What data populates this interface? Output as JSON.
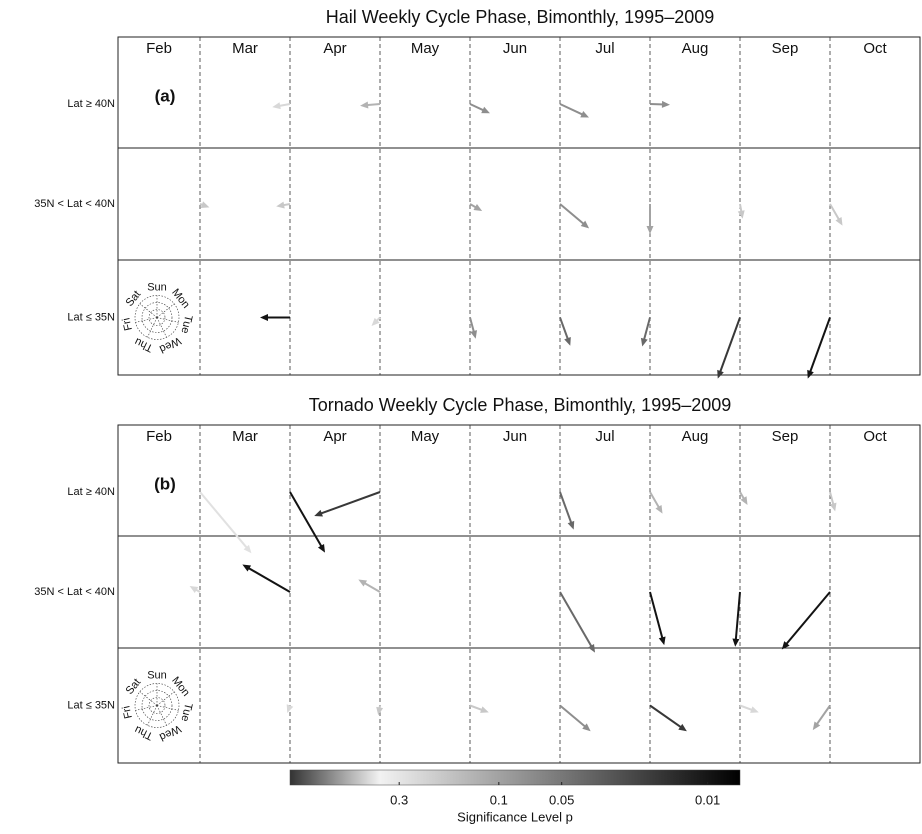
{
  "days": [
    "Sun",
    "Mon",
    "Tue",
    "Wed",
    "Thu",
    "Fri",
    "Sat"
  ],
  "colorbar": {
    "label": "Significance Level p",
    "lim": [
      1,
      0.007
    ],
    "ticks": [
      0.3,
      0.1,
      0.05,
      0.01
    ],
    "log": true
  },
  "chart_data": [
    {
      "type": "vector",
      "title": "Hail Weekly Cycle Phase, Bimonthly, 1995–2009",
      "panel_label": "(a)",
      "columns": [
        "Feb",
        "Mar",
        "Apr",
        "May",
        "Jun",
        "Jul",
        "Aug",
        "Sep",
        "Oct"
      ],
      "rows": [
        "Lat ≥ 40N",
        "35N < Lat < 40N",
        "Lat ≤ 35N"
      ],
      "arrows": [
        {
          "row": 0,
          "boundary": 2,
          "angle": 260,
          "length": 18,
          "p": 0.4
        },
        {
          "row": 0,
          "boundary": 3,
          "angle": 265,
          "length": 20,
          "p": 0.2
        },
        {
          "row": 0,
          "boundary": 4,
          "angle": 115,
          "length": 22,
          "p": 0.1
        },
        {
          "row": 0,
          "boundary": 5,
          "angle": 115,
          "length": 32,
          "p": 0.1
        },
        {
          "row": 0,
          "boundary": 6,
          "angle": 92,
          "length": 20,
          "p": 0.1
        },
        {
          "row": 1,
          "boundary": 1,
          "angle": 110,
          "length": 10,
          "p": 0.3
        },
        {
          "row": 1,
          "boundary": 2,
          "angle": 260,
          "length": 14,
          "p": 0.3
        },
        {
          "row": 1,
          "boundary": 4,
          "angle": 120,
          "length": 14,
          "p": 0.15
        },
        {
          "row": 1,
          "boundary": 5,
          "angle": 130,
          "length": 38,
          "p": 0.1
        },
        {
          "row": 1,
          "boundary": 6,
          "angle": 180,
          "length": 30,
          "p": 0.15
        },
        {
          "row": 1,
          "boundary": 7,
          "angle": 170,
          "length": 15,
          "p": 0.3
        },
        {
          "row": 1,
          "boundary": 8,
          "angle": 150,
          "length": 25,
          "p": 0.3
        },
        {
          "row": 2,
          "boundary": 2,
          "angle": 270,
          "length": 30,
          "p": 0.01
        },
        {
          "row": 2,
          "boundary": 3,
          "angle": 225,
          "length": 12,
          "p": 0.4
        },
        {
          "row": 2,
          "boundary": 4,
          "angle": 165,
          "length": 22,
          "p": 0.1
        },
        {
          "row": 2,
          "boundary": 5,
          "angle": 160,
          "length": 30,
          "p": 0.05
        },
        {
          "row": 2,
          "boundary": 6,
          "angle": 195,
          "length": 30,
          "p": 0.05
        },
        {
          "row": 2,
          "boundary": 7,
          "angle": 200,
          "length": 65,
          "p": 0.02
        },
        {
          "row": 2,
          "boundary": 8,
          "angle": 200,
          "length": 65,
          "p": 0.01
        }
      ]
    },
    {
      "type": "vector",
      "title": "Tornado Weekly Cycle Phase, Bimonthly, 1995–2009",
      "panel_label": "(b)",
      "columns": [
        "Feb",
        "Mar",
        "Apr",
        "May",
        "Jun",
        "Jul",
        "Aug",
        "Sep",
        "Oct"
      ],
      "rows": [
        "Lat ≥ 40N",
        "35N < Lat < 40N",
        "Lat ≤ 35N"
      ],
      "arrows": [
        {
          "row": 0,
          "boundary": 1,
          "angle": 140,
          "length": 80,
          "p": 0.5
        },
        {
          "row": 0,
          "boundary": 2,
          "angle": 150,
          "length": 70,
          "p": 0.01
        },
        {
          "row": 0,
          "boundary": 3,
          "angle": 250,
          "length": 70,
          "p": 0.02
        },
        {
          "row": 0,
          "boundary": 5,
          "angle": 160,
          "length": 40,
          "p": 0.05
        },
        {
          "row": 0,
          "boundary": 6,
          "angle": 150,
          "length": 25,
          "p": 0.2
        },
        {
          "row": 0,
          "boundary": 7,
          "angle": 150,
          "length": 15,
          "p": 0.2
        },
        {
          "row": 0,
          "boundary": 8,
          "angle": 165,
          "length": 20,
          "p": 0.3
        },
        {
          "row": 1,
          "boundary": 1,
          "angle": 300,
          "length": 12,
          "p": 0.4
        },
        {
          "row": 1,
          "boundary": 2,
          "angle": 300,
          "length": 55,
          "p": 0.01
        },
        {
          "row": 1,
          "boundary": 3,
          "angle": 300,
          "length": 25,
          "p": 0.2
        },
        {
          "row": 1,
          "boundary": 5,
          "angle": 150,
          "length": 70,
          "p": 0.05
        },
        {
          "row": 1,
          "boundary": 6,
          "angle": 165,
          "length": 55,
          "p": 0.01
        },
        {
          "row": 1,
          "boundary": 7,
          "angle": 185,
          "length": 55,
          "p": 0.01
        },
        {
          "row": 1,
          "boundary": 8,
          "angle": 220,
          "length": 75,
          "p": 0.01
        },
        {
          "row": 2,
          "boundary": 2,
          "angle": 200,
          "length": 8,
          "p": 0.4
        },
        {
          "row": 2,
          "boundary": 3,
          "angle": 190,
          "length": 10,
          "p": 0.3
        },
        {
          "row": 2,
          "boundary": 4,
          "angle": 110,
          "length": 20,
          "p": 0.3
        },
        {
          "row": 2,
          "boundary": 5,
          "angle": 130,
          "length": 40,
          "p": 0.1
        },
        {
          "row": 2,
          "boundary": 6,
          "angle": 125,
          "length": 45,
          "p": 0.02
        },
        {
          "row": 2,
          "boundary": 7,
          "angle": 110,
          "length": 20,
          "p": 0.4
        },
        {
          "row": 2,
          "boundary": 8,
          "angle": 215,
          "length": 30,
          "p": 0.15
        }
      ]
    }
  ]
}
